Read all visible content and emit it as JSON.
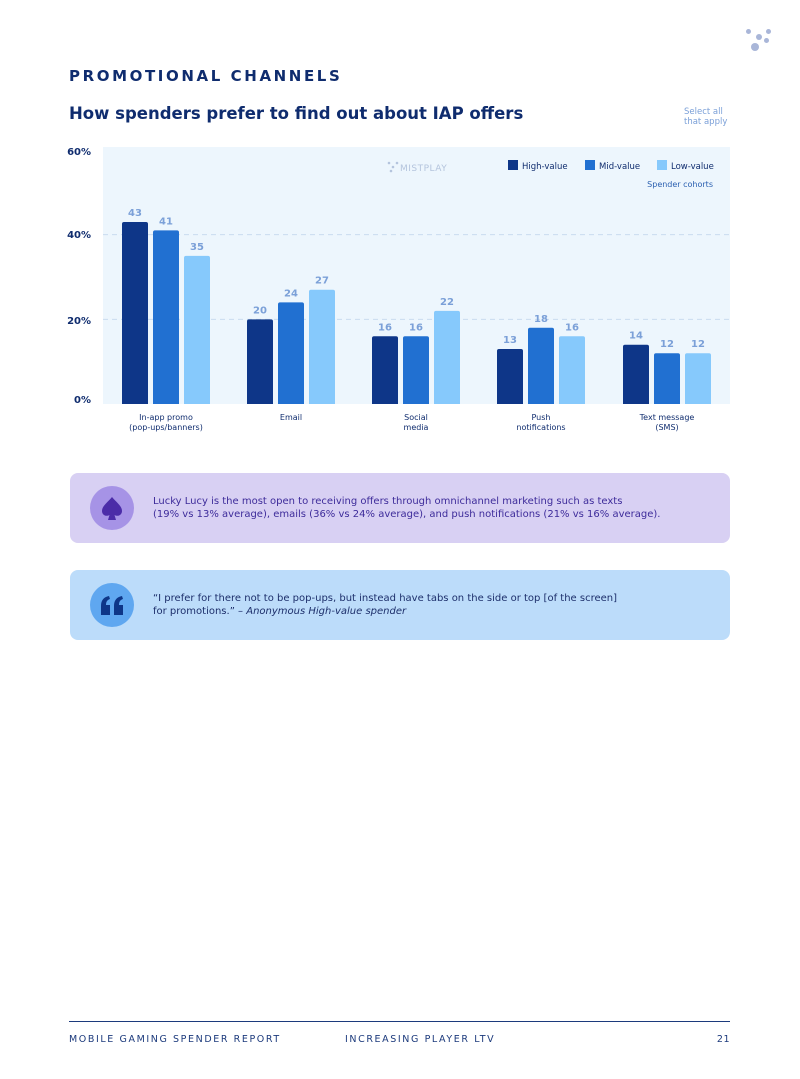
{
  "header": {
    "section_title": "PROMOTIONAL CHANNELS",
    "chart_title": "How spenders prefer to find out about IAP offers",
    "select_note": "Select all that apply"
  },
  "chart_data": {
    "type": "bar",
    "categories": [
      [
        "In-app promo",
        "(pop-ups/banners)"
      ],
      [
        "Email"
      ],
      [
        "Social",
        "media"
      ],
      [
        "Push",
        "notifications"
      ],
      [
        "Text message",
        "(SMS)"
      ]
    ],
    "series": [
      {
        "name": "High-value",
        "color": "#0e3688",
        "values": [
          43,
          20,
          16,
          13,
          14
        ]
      },
      {
        "name": "Mid-value",
        "color": "#2170d1",
        "values": [
          41,
          24,
          16,
          18,
          12
        ]
      },
      {
        "name": "Low-value",
        "color": "#86c9fc",
        "values": [
          35,
          27,
          22,
          16,
          12
        ]
      }
    ],
    "yticks": [
      "0%",
      "20%",
      "40%",
      "60%"
    ],
    "ylim": [
      0,
      60
    ],
    "legend_title": "Spender cohorts",
    "legend_position": "top-right",
    "watermark": "MISTPLAY",
    "grid": true
  },
  "callouts": {
    "lucy_text_1": "Lucky Lucy is the most open to receiving offers through omnichannel marketing such as texts",
    "lucy_text_2": "(19% vs 13% average), emails (36% vs 24% average), and push notifications (21% vs 16% average).",
    "quote_text_1": "“I prefer for there not to be pop-ups, but instead have tabs on the side or top [of the screen]",
    "quote_text_2": "for promotions.” –",
    "quote_attribution": "Anonymous High-value spender"
  },
  "footer": {
    "left": "MOBILE GAMING SPENDER REPORT",
    "middle": "INCREASING PLAYER LTV",
    "page": "21"
  }
}
